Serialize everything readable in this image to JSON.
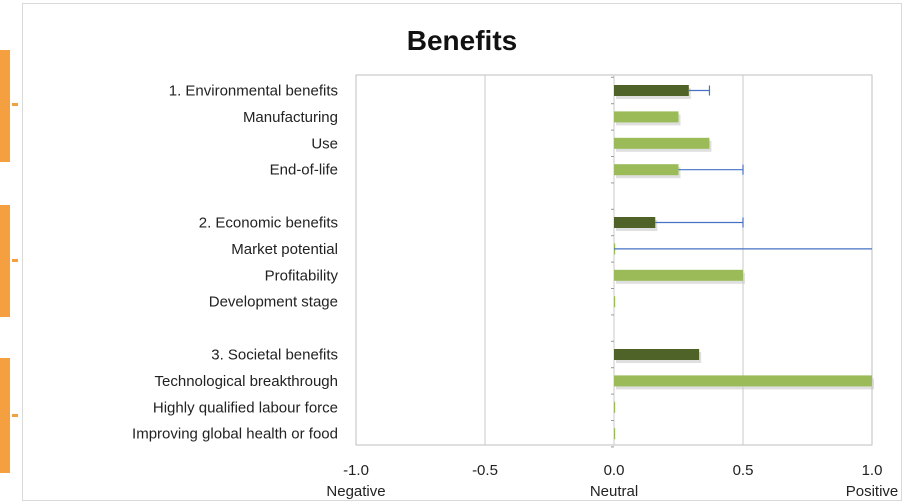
{
  "chart_data": {
    "type": "bar",
    "orientation": "horizontal",
    "title": "Benefits",
    "categories": [
      "1. Environmental benefits",
      "Manufacturing",
      "Use",
      "End-of-life",
      "",
      "2. Economic benefits",
      "Market potential",
      "Profitability",
      "Development stage",
      "",
      "3. Societal benefits",
      "Technological breakthrough",
      "Highly qualified labour force",
      "Improving global health or food"
    ],
    "values": [
      0.29,
      0.25,
      0.37,
      0.25,
      null,
      0.16,
      0,
      0.5,
      0,
      null,
      0.33,
      1.0,
      0,
      0
    ],
    "summary_rows": [
      0,
      5,
      10
    ],
    "error_high": [
      0.37,
      null,
      null,
      0.5,
      null,
      0.5,
      1.0,
      null,
      null,
      null,
      null,
      null,
      null,
      null
    ],
    "xlim": [
      -1.0,
      1.0
    ],
    "x_ticks": [
      -1.0,
      -0.5,
      0.0,
      0.5,
      1.0
    ],
    "x_tick_labels": [
      "-1.0",
      "-0.5",
      "0.0",
      "0.5",
      "1.0"
    ],
    "x_sentiment_labels": [
      "Negative",
      "Neutral",
      "Positive"
    ],
    "grid": "vertical",
    "colors": {
      "summary_bar": "#4f6228",
      "sub_bar": "#9bbb59",
      "error_bar": "#4472c4",
      "grid": "#c8c8c8",
      "accent": "#f4a040"
    }
  }
}
